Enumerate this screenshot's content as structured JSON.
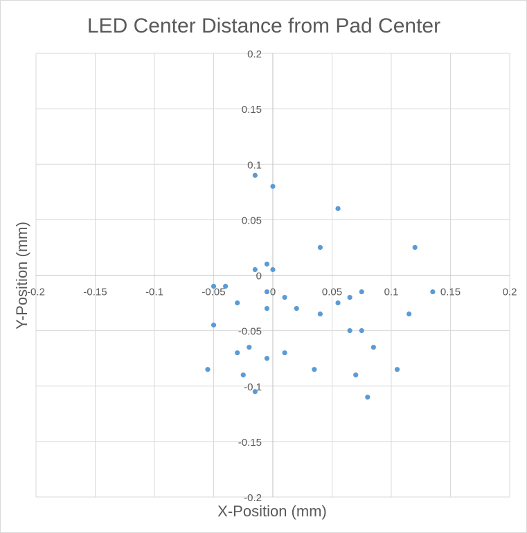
{
  "chart_data": {
    "type": "scatter",
    "title": "LED Center Distance from Pad Center",
    "xlabel": "X-Position (mm)",
    "ylabel": "Y-Position (mm)",
    "xlim": [
      -0.2,
      0.2
    ],
    "ylim": [
      -0.2,
      0.2
    ],
    "xticks": [
      -0.2,
      -0.15,
      -0.1,
      -0.05,
      0,
      0.05,
      0.1,
      0.15,
      0.2
    ],
    "yticks": [
      -0.2,
      -0.15,
      -0.1,
      -0.05,
      0,
      0.05,
      0.1,
      0.15,
      0.2
    ],
    "xtick_labels": [
      "-0.2",
      "-0.15",
      "-0.1",
      "-0.05",
      "0",
      "0.05",
      "0.1",
      "0.15",
      "0.2"
    ],
    "ytick_labels": [
      "-0.2",
      "-0.15",
      "-0.1",
      "-0.05",
      "0",
      "0.05",
      "0.1",
      "0.15",
      "0.2"
    ],
    "grid": true,
    "legend": "none",
    "marker_color": "#5b9bd5",
    "series": [
      {
        "points": [
          [
            -0.015,
            0.09
          ],
          [
            0.0,
            0.08
          ],
          [
            0.055,
            0.06
          ],
          [
            0.04,
            0.025
          ],
          [
            0.12,
            0.025
          ],
          [
            -0.005,
            0.01
          ],
          [
            -0.015,
            0.005
          ],
          [
            0.0,
            0.005
          ],
          [
            -0.05,
            -0.01
          ],
          [
            -0.04,
            -0.01
          ],
          [
            -0.005,
            -0.015
          ],
          [
            0.01,
            -0.02
          ],
          [
            -0.03,
            -0.025
          ],
          [
            -0.005,
            -0.03
          ],
          [
            0.02,
            -0.03
          ],
          [
            0.055,
            -0.025
          ],
          [
            0.065,
            -0.02
          ],
          [
            0.075,
            -0.015
          ],
          [
            0.135,
            -0.015
          ],
          [
            0.04,
            -0.035
          ],
          [
            0.115,
            -0.035
          ],
          [
            -0.05,
            -0.045
          ],
          [
            0.065,
            -0.05
          ],
          [
            0.075,
            -0.05
          ],
          [
            -0.02,
            -0.065
          ],
          [
            0.085,
            -0.065
          ],
          [
            -0.03,
            -0.07
          ],
          [
            0.01,
            -0.07
          ],
          [
            -0.005,
            -0.075
          ],
          [
            -0.055,
            -0.085
          ],
          [
            0.035,
            -0.085
          ],
          [
            0.105,
            -0.085
          ],
          [
            -0.025,
            -0.09
          ],
          [
            0.07,
            -0.09
          ],
          [
            -0.015,
            -0.105
          ],
          [
            0.08,
            -0.11
          ]
        ]
      }
    ]
  }
}
